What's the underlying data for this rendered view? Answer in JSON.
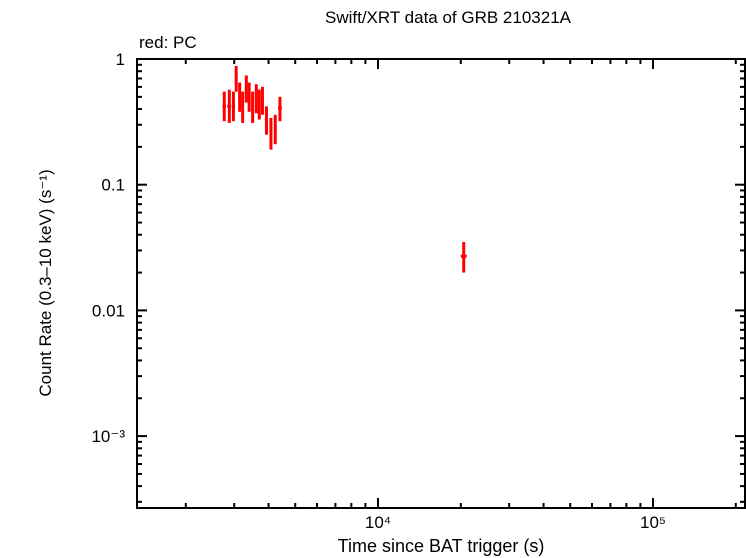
{
  "chart_data": {
    "type": "scatter",
    "title": "Swift/XRT data of GRB 210321A",
    "annotation": "red: PC",
    "xlabel": "Time since BAT trigger (s)",
    "ylabel": "Count Rate (0.3–10 keV) (s⁻¹)",
    "xscale": "log",
    "yscale": "log",
    "xlim": [
      1400,
      210000
    ],
    "ylim": [
      0.00027,
      1
    ],
    "x_ticks": [
      {
        "value": 10000,
        "label": "10⁴"
      },
      {
        "value": 100000,
        "label": "10⁵"
      }
    ],
    "y_ticks": [
      {
        "value": 1,
        "label": "1"
      },
      {
        "value": 0.1,
        "label": "0.1"
      },
      {
        "value": 0.01,
        "label": "0.01"
      },
      {
        "value": 0.001,
        "label": "10⁻³"
      }
    ],
    "series": [
      {
        "name": "PC",
        "color": "#ff0000",
        "points": [
          {
            "t": 2760,
            "t_lo": 2720,
            "t_hi": 2800,
            "rate": 0.42,
            "rate_lo": 0.32,
            "rate_hi": 0.55
          },
          {
            "t": 2880,
            "t_lo": 2830,
            "t_hi": 2920,
            "rate": 0.42,
            "rate_lo": 0.31,
            "rate_hi": 0.57
          },
          {
            "t": 2980,
            "t_lo": 2940,
            "t_hi": 3020,
            "rate": 0.42,
            "rate_lo": 0.32,
            "rate_hi": 0.55
          },
          {
            "t": 3050,
            "t_lo": 3020,
            "t_hi": 3080,
            "rate": 0.7,
            "rate_lo": 0.55,
            "rate_hi": 0.88
          },
          {
            "t": 3140,
            "t_lo": 3100,
            "t_hi": 3170,
            "rate": 0.5,
            "rate_lo": 0.38,
            "rate_hi": 0.65
          },
          {
            "t": 3220,
            "t_lo": 3180,
            "t_hi": 3250,
            "rate": 0.42,
            "rate_lo": 0.31,
            "rate_hi": 0.55
          },
          {
            "t": 3320,
            "t_lo": 3280,
            "t_hi": 3350,
            "rate": 0.59,
            "rate_lo": 0.45,
            "rate_hi": 0.74
          },
          {
            "t": 3400,
            "t_lo": 3360,
            "t_hi": 3440,
            "rate": 0.5,
            "rate_lo": 0.38,
            "rate_hi": 0.65
          },
          {
            "t": 3500,
            "t_lo": 3460,
            "t_hi": 3540,
            "rate": 0.42,
            "rate_lo": 0.31,
            "rate_hi": 0.55
          },
          {
            "t": 3610,
            "t_lo": 3570,
            "t_hi": 3650,
            "rate": 0.49,
            "rate_lo": 0.37,
            "rate_hi": 0.63
          },
          {
            "t": 3700,
            "t_lo": 3660,
            "t_hi": 3740,
            "rate": 0.44,
            "rate_lo": 0.33,
            "rate_hi": 0.57
          },
          {
            "t": 3800,
            "t_lo": 3760,
            "t_hi": 3840,
            "rate": 0.47,
            "rate_lo": 0.36,
            "rate_hi": 0.6
          },
          {
            "t": 3930,
            "t_lo": 3880,
            "t_hi": 3980,
            "rate": 0.33,
            "rate_lo": 0.25,
            "rate_hi": 0.42
          },
          {
            "t": 4080,
            "t_lo": 4030,
            "t_hi": 4130,
            "rate": 0.26,
            "rate_lo": 0.19,
            "rate_hi": 0.34
          },
          {
            "t": 4230,
            "t_lo": 4180,
            "t_hi": 4280,
            "rate": 0.28,
            "rate_lo": 0.21,
            "rate_hi": 0.36
          },
          {
            "t": 4400,
            "t_lo": 4330,
            "t_hi": 4470,
            "rate": 0.41,
            "rate_lo": 0.32,
            "rate_hi": 0.5
          },
          {
            "t": 20500,
            "t_lo": 20000,
            "t_hi": 21000,
            "rate": 0.027,
            "rate_lo": 0.02,
            "rate_hi": 0.035
          }
        ]
      }
    ],
    "grid": false,
    "legend_position": "top-left annotation"
  }
}
